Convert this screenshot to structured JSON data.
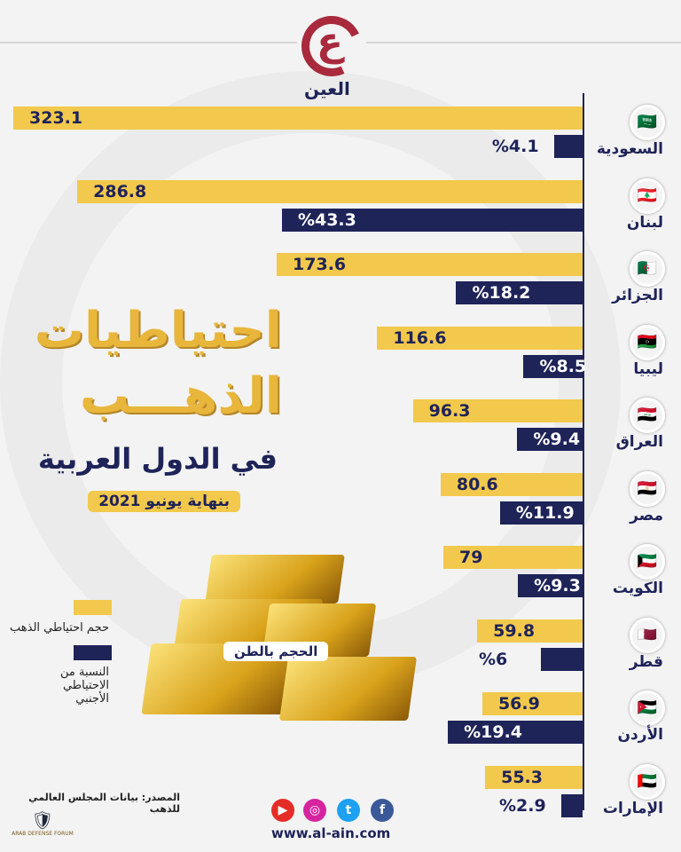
{
  "brand": {
    "logo_text": "العين",
    "url": "www.al-ain.com"
  },
  "title": {
    "line1": "احتياطيات",
    "line2": "الذهـــب",
    "line3": "في الدول العربية",
    "date": "بنهاية يونيو 2021"
  },
  "unit_label": "الحجم بالطن",
  "legend": {
    "gold": "حجم احتياطي الذهب",
    "blue": "النسبة من الاحتياطي الأجنبي"
  },
  "source": "المصدر: بيانات المجلس العالمي للذهب",
  "watermark": "ARAB DEFENSE FORUM",
  "colors": {
    "gold": "#f2c94c",
    "blue": "#1e2358",
    "brand": "#a82a3c"
  },
  "chart_data": {
    "type": "bar",
    "orientation": "horizontal",
    "categories": [
      "السعودية",
      "لبنان",
      "الجزائر",
      "ليبيا",
      "العراق",
      "مصر",
      "الكويت",
      "قطر",
      "الأردن",
      "الإمارات"
    ],
    "series": [
      {
        "name": "حجم احتياطي الذهب",
        "unit": "tonnes",
        "values": [
          323.1,
          286.8,
          173.6,
          116.6,
          96.3,
          80.6,
          79,
          59.8,
          56.9,
          55.3
        ],
        "labels": [
          "323.1",
          "286.8",
          "173.6",
          "116.6",
          "96.3",
          "80.6",
          "79",
          "59.8",
          "56.9",
          "55.3"
        ]
      },
      {
        "name": "النسبة من الاحتياطي الأجنبي",
        "unit": "%",
        "values": [
          4.1,
          43.3,
          18.2,
          8.5,
          9.4,
          11.9,
          9.3,
          6,
          19.4,
          2.9
        ],
        "labels": [
          "%4.1",
          "%43.3",
          "%18.2",
          "%8.5",
          "%9.4",
          "%11.9",
          "%9.3",
          "%6",
          "%19.4",
          "%2.9"
        ]
      }
    ],
    "flags": [
      "🇸🇦",
      "🇱🇧",
      "🇩🇿",
      "🇱🇾",
      "🇮🇶",
      "🇪🇬",
      "🇰🇼",
      "🇶🇦",
      "🇯🇴",
      "🇦🇪"
    ]
  }
}
